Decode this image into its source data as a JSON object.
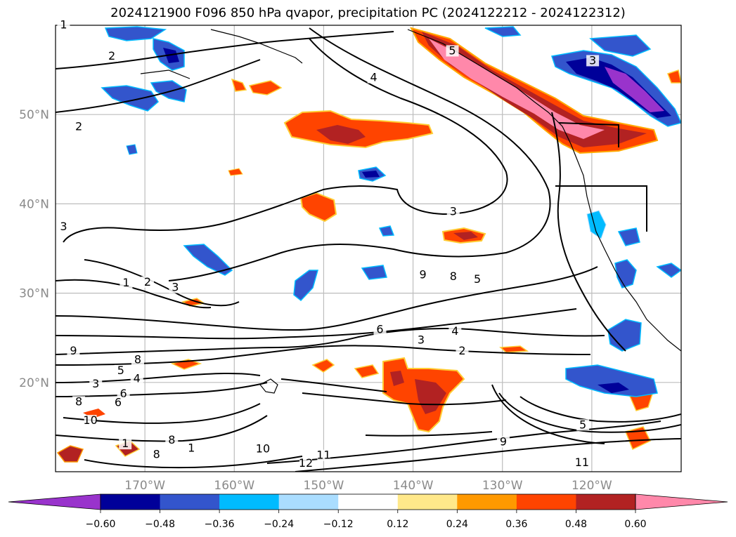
{
  "chart_data": {
    "type": "contour-map",
    "title": "2024121900 F096 850 hPa qvapor, precipitation PC (2024122212 - 2024122312)",
    "lon_range": [
      -180,
      -110
    ],
    "lat_range": [
      10,
      60
    ],
    "lon_ticks": [
      {
        "lon": -170,
        "label": "170°W"
      },
      {
        "lon": -160,
        "label": "160°W"
      },
      {
        "lon": -150,
        "label": "150°W"
      },
      {
        "lon": -140,
        "label": "140°W"
      },
      {
        "lon": -130,
        "label": "130°W"
      },
      {
        "lon": -120,
        "label": "120°W"
      }
    ],
    "lat_ticks": [
      {
        "lat": 50,
        "label": "50°N"
      },
      {
        "lat": 40,
        "label": "40°N"
      },
      {
        "lat": 30,
        "label": "30°N"
      },
      {
        "lat": 20,
        "label": "20°N"
      }
    ],
    "grid": true,
    "colorbar": {
      "orientation": "horizontal",
      "extend": "both",
      "boundaries": [
        -0.6,
        -0.48,
        -0.36,
        -0.24,
        -0.12,
        0.12,
        0.24,
        0.36,
        0.48,
        0.6
      ],
      "tick_labels": [
        "−0.60",
        "−0.48",
        "−0.36",
        "−0.24",
        "−0.12",
        "0.12",
        "0.24",
        "0.36",
        "0.48",
        "0.60"
      ],
      "colors": [
        "#9933cc",
        "#000099",
        "#3355cc",
        "#00bbff",
        "#aaddff",
        "#ffffff",
        "#ffe88a",
        "#ff9900",
        "#ff4400",
        "#b22222",
        "#ff88aa"
      ]
    },
    "contour_labels": [
      {
        "text": "1",
        "lon": -179.1,
        "lat": 59.8
      },
      {
        "text": "2",
        "lon": -173.7,
        "lat": 56.3
      },
      {
        "text": "4",
        "lon": -144.4,
        "lat": 53.9
      },
      {
        "text": "5",
        "lon": -135.6,
        "lat": 56.9
      },
      {
        "text": "3",
        "lon": -119.9,
        "lat": 55.8
      },
      {
        "text": "2",
        "lon": -177.4,
        "lat": 48.4
      },
      {
        "text": "3",
        "lon": -179.1,
        "lat": 37.2
      },
      {
        "text": "3",
        "lon": -135.5,
        "lat": 38.9
      },
      {
        "text": "1",
        "lon": -172.1,
        "lat": 30.9
      },
      {
        "text": "2",
        "lon": -169.7,
        "lat": 31.0
      },
      {
        "text": "3",
        "lon": -166.6,
        "lat": 30.4
      },
      {
        "text": "9",
        "lon": -138.9,
        "lat": 31.8
      },
      {
        "text": "8",
        "lon": -135.5,
        "lat": 31.6
      },
      {
        "text": "5",
        "lon": -132.8,
        "lat": 31.3
      },
      {
        "text": "6",
        "lon": -143.7,
        "lat": 25.7
      },
      {
        "text": "4",
        "lon": -135.3,
        "lat": 25.5
      },
      {
        "text": "3",
        "lon": -139.1,
        "lat": 24.5
      },
      {
        "text": "2",
        "lon": -134.5,
        "lat": 23.3
      },
      {
        "text": "9",
        "lon": -178.0,
        "lat": 23.3
      },
      {
        "text": "8",
        "lon": -170.8,
        "lat": 22.3
      },
      {
        "text": "5",
        "lon": -172.7,
        "lat": 21.1
      },
      {
        "text": "4",
        "lon": -170.9,
        "lat": 20.2
      },
      {
        "text": "3",
        "lon": -175.5,
        "lat": 19.6
      },
      {
        "text": "6",
        "lon": -172.4,
        "lat": 18.5
      },
      {
        "text": "8",
        "lon": -177.4,
        "lat": 17.6
      },
      {
        "text": "6",
        "lon": -173.0,
        "lat": 17.5
      },
      {
        "text": "10",
        "lon": -176.1,
        "lat": 15.5
      },
      {
        "text": "1",
        "lon": -172.2,
        "lat": 12.9
      },
      {
        "text": "8",
        "lon": -167.0,
        "lat": 13.3
      },
      {
        "text": "8",
        "lon": -168.7,
        "lat": 11.7
      },
      {
        "text": "1",
        "lon": -164.8,
        "lat": 12.4
      },
      {
        "text": "10",
        "lon": -156.8,
        "lat": 12.3
      },
      {
        "text": "11",
        "lon": -150.0,
        "lat": 11.6
      },
      {
        "text": "12",
        "lon": -152.0,
        "lat": 10.7
      },
      {
        "text": "9",
        "lon": -129.9,
        "lat": 13.1
      },
      {
        "text": "5",
        "lon": -121.0,
        "lat": 15.0
      },
      {
        "text": "11",
        "lon": -121.1,
        "lat": 10.8
      }
    ],
    "colorbar_extend_labels": []
  }
}
